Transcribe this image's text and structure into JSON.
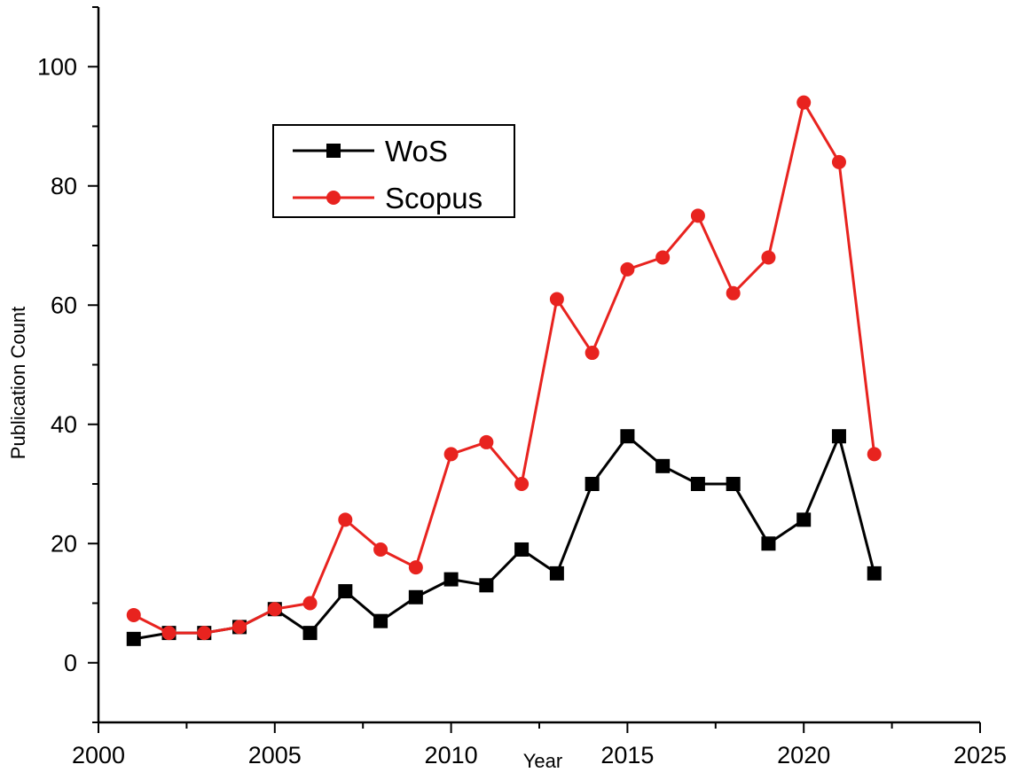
{
  "colors": {
    "background": "#ffffff",
    "axis": "#000000",
    "wos": "#000000",
    "scopus": "#e8231f"
  },
  "chart_data": {
    "type": "line",
    "title": "",
    "xlabel": "Year",
    "ylabel": "Publication Count",
    "xlim": [
      2000,
      2025
    ],
    "ylim": [
      -10,
      110
    ],
    "x_ticks": [
      2000,
      2005,
      2010,
      2015,
      2020,
      2025
    ],
    "y_ticks": [
      0,
      20,
      40,
      60,
      80,
      100
    ],
    "grid": false,
    "legend_position": "upper-left",
    "x": [
      2001,
      2002,
      2003,
      2004,
      2005,
      2006,
      2007,
      2008,
      2009,
      2010,
      2011,
      2012,
      2013,
      2014,
      2015,
      2016,
      2017,
      2018,
      2019,
      2020,
      2021,
      2022
    ],
    "series": [
      {
        "name": "WoS",
        "color": "#000000",
        "marker": "square",
        "values": [
          4,
          5,
          5,
          6,
          9,
          5,
          12,
          7,
          11,
          14,
          13,
          19,
          15,
          30,
          38,
          33,
          30,
          30,
          20,
          24,
          38,
          15
        ]
      },
      {
        "name": "Scopus",
        "color": "#e8231f",
        "marker": "circle",
        "values": [
          8,
          5,
          5,
          6,
          9,
          10,
          24,
          19,
          16,
          35,
          37,
          30,
          61,
          52,
          66,
          68,
          75,
          62,
          68,
          94,
          84,
          35
        ]
      }
    ]
  }
}
